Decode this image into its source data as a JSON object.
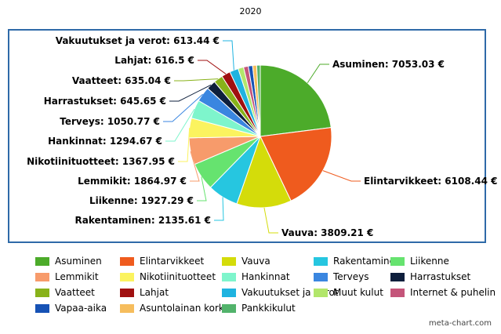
{
  "chart_data": {
    "type": "pie",
    "title": "2020",
    "currency": "€",
    "slices": [
      {
        "label": "Asuminen",
        "value": 7053.03,
        "color": "#4cab2a",
        "display": "7053.03 €"
      },
      {
        "label": "Elintarvikkeet",
        "value": 6108.44,
        "color": "#ef5b1e",
        "display": "6108.44 €"
      },
      {
        "label": "Vauva",
        "value": 3809.21,
        "color": "#d4dc0a",
        "display": "3809.21 €"
      },
      {
        "label": "Rakentaminen",
        "value": 2135.61,
        "color": "#26c6e0",
        "display": "2135.61 €"
      },
      {
        "label": "Liikenne",
        "value": 1927.29,
        "color": "#66e36f",
        "display": "1927.29 €"
      },
      {
        "label": "Lemmikit",
        "value": 1864.97,
        "color": "#f79b6b",
        "display": "1864.97 €"
      },
      {
        "label": "Nikotiinituotteet",
        "value": 1367.95,
        "color": "#fbf35f",
        "display": "1367.95 €"
      },
      {
        "label": "Hankinnat",
        "value": 1294.67,
        "color": "#7ef5cc",
        "display": "1294.67 €"
      },
      {
        "label": "Terveys",
        "value": 1050.77,
        "color": "#3a86e0",
        "display": "1050.77 €"
      },
      {
        "label": "Harrastukset",
        "value": 645.65,
        "color": "#0e1f3c",
        "display": "645.65 €"
      },
      {
        "label": "Vaatteet",
        "value": 635.04,
        "color": "#88b21a",
        "display": "635.04 €"
      },
      {
        "label": "Lahjat",
        "value": 616.5,
        "color": "#a01010",
        "display": "616.5 €"
      },
      {
        "label": "Vakuutukset ja verot",
        "value": 613.44,
        "color": "#1fb3e0",
        "display": "613.44 €"
      },
      {
        "label": "Muut kulut",
        "value": 380,
        "color": "#b2e66b",
        "display": ""
      },
      {
        "label": "Internet & puhelin",
        "value": 330,
        "color": "#c4557a",
        "display": ""
      },
      {
        "label": "Vapaa-aika",
        "value": 300,
        "color": "#1652b5",
        "display": ""
      },
      {
        "label": "Asuntolainan korko",
        "value": 280,
        "color": "#f6bd5d",
        "display": ""
      },
      {
        "label": "Pankkikulut",
        "value": 250,
        "color": "#52b36b",
        "display": ""
      }
    ]
  },
  "credit": "meta-chart.com"
}
